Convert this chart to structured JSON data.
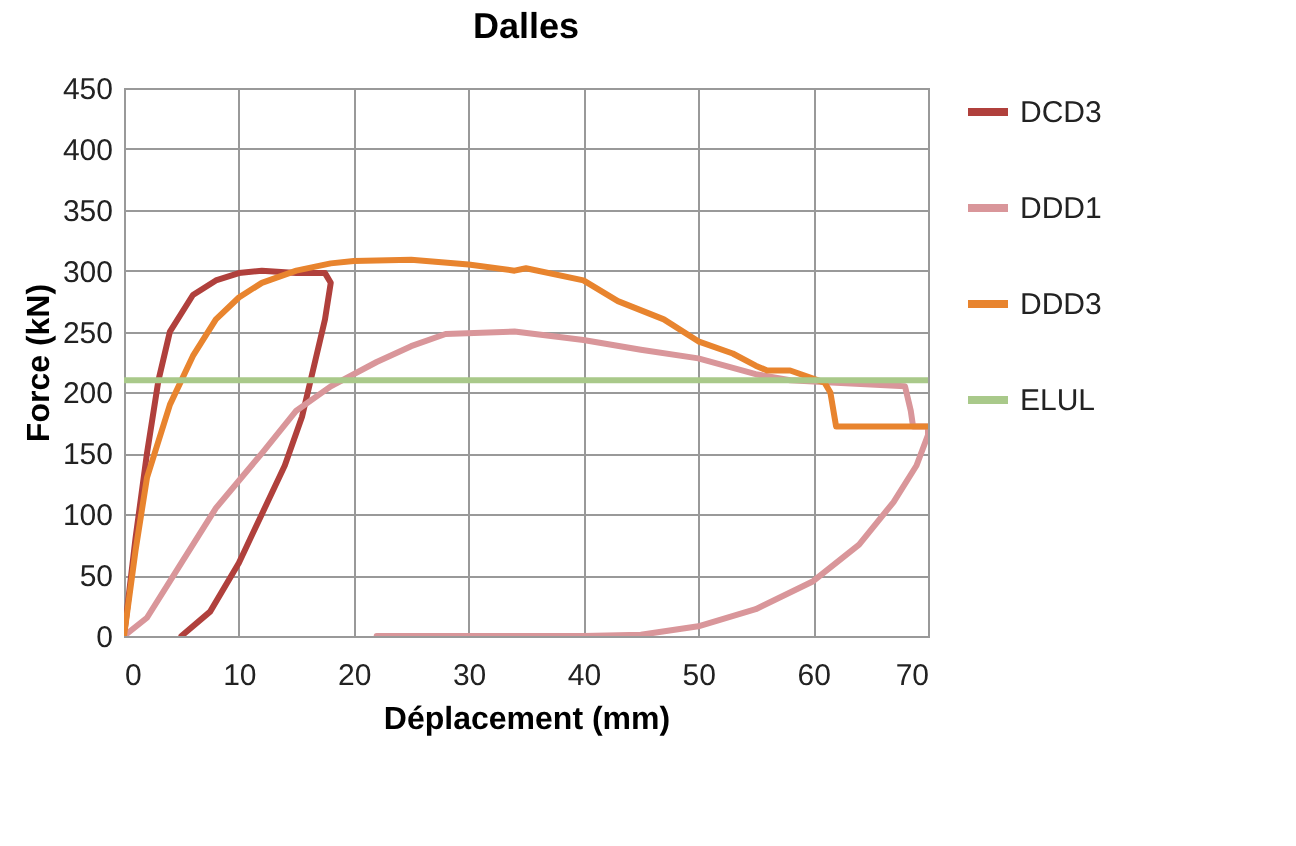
{
  "chart_data": {
    "type": "line",
    "title": "Dalles",
    "xlabel": "Déplacement (mm)",
    "ylabel": "Force (kN)",
    "xlim": [
      0,
      70
    ],
    "xticks": [
      0,
      10,
      20,
      30,
      40,
      50,
      60,
      70
    ],
    "ylim": [
      0,
      450
    ],
    "yticks": [
      0,
      50,
      100,
      150,
      200,
      250,
      300,
      350,
      400,
      450
    ],
    "grid": true,
    "legend": "right",
    "marker": "none",
    "line_style": "solid",
    "series": [
      {
        "name": "DCD3",
        "color": "#b0403c",
        "x": [
          0,
          1,
          2,
          3,
          4,
          6,
          8,
          10,
          12,
          15,
          17.5,
          18,
          17.5,
          16.5,
          15.5,
          14,
          12,
          10,
          7.5,
          5
        ],
        "values": [
          0,
          80,
          150,
          210,
          250,
          280,
          292,
          298,
          300,
          298,
          298,
          290,
          260,
          220,
          180,
          140,
          100,
          60,
          20,
          0
        ]
      },
      {
        "name": "DDD1",
        "color": "#d9969a",
        "x": [
          0,
          2,
          5,
          8,
          12,
          15,
          18,
          22,
          25,
          28,
          34,
          40,
          45,
          50,
          55,
          58,
          62,
          68,
          68.5,
          68.7,
          70,
          70,
          69,
          67,
          64,
          60,
          55,
          50,
          45,
          40,
          22
        ],
        "values": [
          0,
          15,
          60,
          105,
          150,
          185,
          205,
          225,
          238,
          248,
          250,
          243,
          235,
          228,
          215,
          210,
          208,
          205,
          185,
          172,
          172,
          165,
          140,
          110,
          75,
          45,
          22,
          8,
          1,
          0,
          0
        ]
      },
      {
        "name": "DDD3",
        "color": "#e8842e",
        "x": [
          0,
          1,
          2,
          4,
          6,
          8,
          10,
          12,
          15,
          18,
          20,
          25,
          30,
          34,
          35,
          40,
          43,
          47,
          50,
          53,
          55,
          56,
          58,
          61,
          61.5,
          62,
          70
        ],
        "values": [
          0,
          70,
          130,
          190,
          230,
          260,
          278,
          290,
          300,
          306,
          308,
          309,
          305,
          300,
          302,
          292,
          275,
          260,
          242,
          232,
          222,
          218,
          218,
          208,
          200,
          172,
          172
        ]
      },
      {
        "name": "ELUL",
        "color": "#a9c98a",
        "x": [
          0,
          70
        ],
        "values": [
          210,
          210
        ]
      }
    ]
  }
}
